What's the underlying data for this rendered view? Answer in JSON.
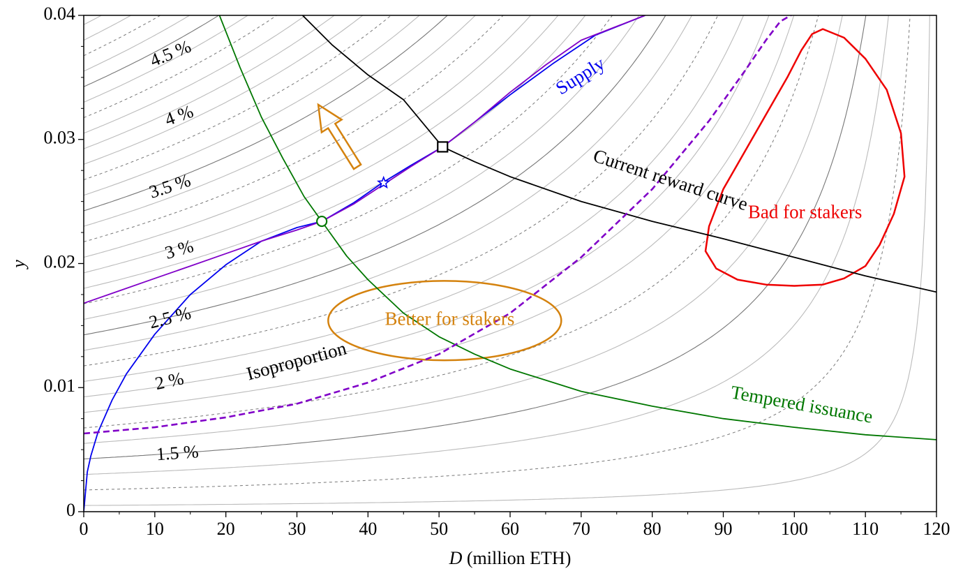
{
  "chart_data": {
    "type": "line",
    "title": "",
    "xlabel_var": "D",
    "xlabel_unit": " (million ETH)",
    "ylabel": "y",
    "xlim": [
      0,
      120
    ],
    "ylim": [
      0,
      0.04
    ],
    "x_ticks": [
      0,
      10,
      20,
      30,
      40,
      50,
      60,
      70,
      80,
      90,
      100,
      110,
      120
    ],
    "x_tick_labels": [
      "0",
      "10",
      "20",
      "30",
      "40",
      "50",
      "60",
      "70",
      "80",
      "90",
      "100",
      "110",
      "120"
    ],
    "y_ticks": [
      0,
      0.01,
      0.02,
      0.03,
      0.04
    ],
    "y_tick_labels": [
      "0",
      "0.01",
      "0.02",
      "0.03",
      "0.04"
    ],
    "grid": false,
    "legend": "none",
    "colors": {
      "supply": "#0000ee",
      "reward": "#000000",
      "tempered": "#007700",
      "isoproportion": "#8000c8",
      "better_region": "#d4820e",
      "bad_region": "#ee0000",
      "contour_solid": "#bbbbbb",
      "contour_major": "#777777",
      "contour_dashed": "#777777"
    },
    "iso_contour_labels": [
      {
        "text": "1.5 %",
        "value": 1.5
      },
      {
        "text": "2 %",
        "value": 2.0
      },
      {
        "text": "2.5 %",
        "value": 2.5
      },
      {
        "text": "3 %",
        "value": 3.0
      },
      {
        "text": "3.5 %",
        "value": 3.5
      },
      {
        "text": "4 %",
        "value": 4.0
      },
      {
        "text": "4.5 %",
        "value": 4.5
      }
    ],
    "series": [
      {
        "name": "Supply",
        "x": [
          0,
          0.5,
          1,
          2,
          4,
          6,
          10,
          15,
          20,
          25,
          30,
          33.5,
          38,
          42,
          46,
          50.5,
          55,
          60,
          66,
          72,
          79
        ],
        "y": [
          0,
          0.0032,
          0.0045,
          0.0064,
          0.009,
          0.0111,
          0.0143,
          0.0175,
          0.0199,
          0.0218,
          0.0229,
          0.0234,
          0.0249,
          0.0265,
          0.0279,
          0.0294,
          0.0314,
          0.0336,
          0.0361,
          0.0384,
          0.04
        ]
      },
      {
        "name": "Current reward curve",
        "x": [
          30.8,
          35,
          40,
          45,
          50.5,
          55,
          60,
          70,
          80,
          90,
          100,
          110,
          120
        ],
        "y": [
          0.04,
          0.0376,
          0.0352,
          0.0332,
          0.0294,
          0.0282,
          0.027,
          0.025,
          0.0234,
          0.022,
          0.0205,
          0.019,
          0.0177
        ]
      },
      {
        "name": "Tempered issuance",
        "x": [
          19.1,
          22,
          25,
          28,
          31,
          33.5,
          37,
          40,
          45,
          50,
          55,
          60,
          70,
          80,
          90,
          100,
          110,
          120
        ],
        "y": [
          0.04,
          0.0358,
          0.0318,
          0.0285,
          0.0254,
          0.0234,
          0.0206,
          0.0187,
          0.016,
          0.0141,
          0.0127,
          0.0115,
          0.0097,
          0.0085,
          0.0075,
          0.0068,
          0.0062,
          0.0058
        ]
      },
      {
        "name": "Isoproportion",
        "x": [
          0,
          5,
          10,
          15,
          20,
          25,
          30,
          33.5,
          38,
          42,
          46,
          50.5,
          55,
          60,
          65,
          70,
          79
        ],
        "y": [
          0.0168,
          0.0178,
          0.0188,
          0.0198,
          0.0208,
          0.0218,
          0.0227,
          0.0234,
          0.0248,
          0.0263,
          0.0278,
          0.0294,
          0.0314,
          0.0338,
          0.036,
          0.038,
          0.04
        ]
      },
      {
        "name": "isoproportion-dashed",
        "x": [
          0,
          10,
          20,
          30,
          40,
          50,
          60,
          70,
          80,
          88,
          93,
          96,
          98,
          99.5,
          100.8
        ],
        "y": [
          0.0063,
          0.0068,
          0.0076,
          0.0087,
          0.0104,
          0.0127,
          0.016,
          0.0205,
          0.026,
          0.0315,
          0.0355,
          0.038,
          0.0395,
          0.04,
          0.0409
        ]
      }
    ],
    "points": [
      {
        "name": "current-equilibrium-square",
        "x": 50.5,
        "y": 0.0294
      },
      {
        "name": "tempered-equilibrium-circle",
        "x": 33.5,
        "y": 0.0234
      },
      {
        "name": "star-marker",
        "x": 42.2,
        "y": 0.0265
      }
    ],
    "regions": [
      {
        "name": "better-for-stakers",
        "label": "Better for stakers",
        "cx": 50.8,
        "cy": 0.0154,
        "rx": 16.4,
        "ry": 0.0032
      },
      {
        "name": "bad-for-stakers",
        "label": "Bad for stakers",
        "x": [
          104,
          107,
          110,
          113,
          115,
          115.5,
          114,
          112,
          110,
          107,
          104,
          100,
          96,
          92,
          89,
          87.5,
          88,
          90,
          93,
          96,
          99,
          101,
          102.5,
          104
        ],
        "y": [
          0.0389,
          0.0382,
          0.0365,
          0.034,
          0.0305,
          0.027,
          0.024,
          0.0215,
          0.0198,
          0.0188,
          0.0183,
          0.0182,
          0.0183,
          0.0187,
          0.0196,
          0.021,
          0.023,
          0.026,
          0.029,
          0.032,
          0.035,
          0.0372,
          0.0385,
          0.0389
        ]
      }
    ],
    "arrow": {
      "from": [
        38.5,
        0.0278
      ],
      "to": [
        33,
        0.0328
      ]
    },
    "annotations": [
      {
        "name": "supply-label",
        "text": "Supply",
        "x": 70,
        "y": 0.035,
        "rotate": -32,
        "color": "#0000ee"
      },
      {
        "name": "reward-curve-label",
        "text": "Current reward curve",
        "x": 82.5,
        "y": 0.0266,
        "rotate": 18,
        "color": "#000000"
      },
      {
        "name": "tempered-label",
        "text": "Tempered issuance",
        "x": 101,
        "y": 0.0085,
        "rotate": 10,
        "color": "#007700"
      },
      {
        "name": "isoproportion-label",
        "text": "Isoproportion",
        "x": 30,
        "y": 0.012,
        "rotate": -15,
        "color": "#000000"
      },
      {
        "name": "better-label",
        "text": "Better for stakers",
        "x": 51.5,
        "y": 0.0154,
        "rotate": 0,
        "color": "#d4820e"
      },
      {
        "name": "bad-label",
        "text": "Bad for stakers",
        "x": 101.5,
        "y": 0.024,
        "rotate": 0,
        "color": "#ee0000"
      }
    ]
  }
}
